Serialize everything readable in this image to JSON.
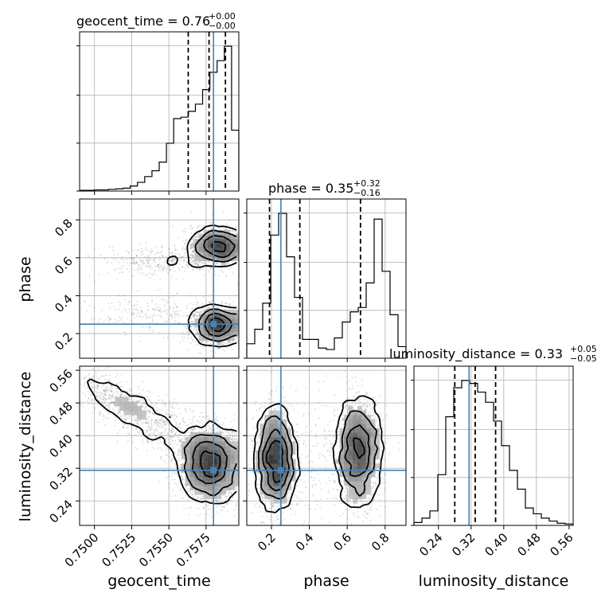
{
  "chart_data": {
    "type": "corner",
    "parameters": [
      "geocent_time",
      "phase",
      "luminosity_distance"
    ],
    "axis_labels": {
      "geocent_time": "geocent_time",
      "phase": "phase",
      "luminosity_distance": "luminosity_distance"
    },
    "titles": [
      {
        "param": "geocent_time",
        "prefix": "geocent_time = ",
        "median": "0.76",
        "plus": "+0.00",
        "minus": "−0.00"
      },
      {
        "param": "phase",
        "prefix": "phase = ",
        "median": "0.35",
        "plus": "+0.32",
        "minus": "−0.16"
      },
      {
        "param": "luminosity_distance",
        "prefix": "luminosity_distance = ",
        "median": "0.33",
        "plus": "+0.05",
        "minus": "−0.05"
      }
    ],
    "ranges": {
      "geocent_time": [
        0.749,
        0.7597
      ],
      "phase": [
        0.07,
        0.91
      ],
      "luminosity_distance": [
        0.18,
        0.57
      ]
    },
    "ticks": {
      "geocent_time": {
        "values": [
          0.75,
          0.7525,
          0.755,
          0.7575
        ],
        "labels": [
          "0.7500",
          "0.7525",
          "0.7550",
          "0.7575"
        ]
      },
      "phase": {
        "values": [
          0.2,
          0.4,
          0.6,
          0.8
        ],
        "labels": [
          "0.2",
          "0.4",
          "0.6",
          "0.8"
        ]
      },
      "luminosity_distance": {
        "values": [
          0.24,
          0.32,
          0.4,
          0.48,
          0.56
        ],
        "labels": [
          "0.24",
          "0.32",
          "0.40",
          "0.48",
          "0.56"
        ]
      }
    },
    "truths": {
      "geocent_time": 0.758,
      "phase": 0.25,
      "luminosity_distance": 0.315
    },
    "quantile_lines": {
      "geocent_time": [
        0.7563,
        0.7577,
        0.7588
      ],
      "phase": [
        0.19,
        0.35,
        0.67
      ],
      "luminosity_distance": [
        0.28,
        0.33,
        0.38
      ]
    },
    "histograms": {
      "geocent_time": [
        0.005,
        0.005,
        0.008,
        0.008,
        0.012,
        0.015,
        0.02,
        0.035,
        0.06,
        0.1,
        0.14,
        0.2,
        0.33,
        0.5,
        0.51,
        0.55,
        0.6,
        0.7,
        0.82,
        0.9,
        1.0,
        0.42
      ],
      "phase": [
        0.1,
        0.2,
        0.38,
        0.85,
        1.0,
        0.7,
        0.42,
        0.13,
        0.13,
        0.07,
        0.06,
        0.14,
        0.25,
        0.32,
        0.35,
        0.52,
        0.96,
        0.6,
        0.3,
        0.08
      ],
      "luminosity_distance": [
        0.02,
        0.05,
        0.1,
        0.35,
        0.75,
        0.95,
        1.0,
        0.98,
        0.92,
        0.85,
        0.72,
        0.55,
        0.38,
        0.25,
        0.12,
        0.08,
        0.05,
        0.03,
        0.015,
        0.01
      ]
    },
    "histogram_ticks": [
      0,
      0.33,
      0.66,
      1.0
    ],
    "grid": true,
    "colors": {
      "truth": "#4682b4",
      "hist": "#000000",
      "density": "#000000"
    }
  }
}
